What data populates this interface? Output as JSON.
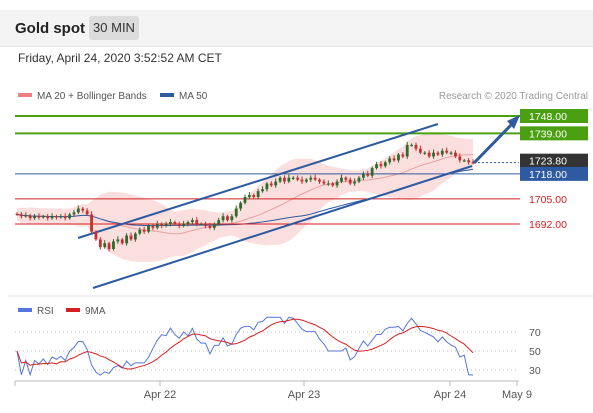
{
  "header": {
    "title": "Gold spot",
    "interval": "30 MIN"
  },
  "datetime": "Friday, April 24, 2020 3:52:52 AM CET",
  "legend": {
    "bb": "MA 20 + Bollinger Bands",
    "ma50": "MA 50",
    "credit": "Research © 2020 Trading Central"
  },
  "rsi_legend": {
    "rsi": "RSI",
    "ma9": "9MA"
  },
  "colors": {
    "green": "#4aa010",
    "blue": "#2d5aa0",
    "red": "#d42020",
    "current": "#333333",
    "bands": "#f7c8c8",
    "rsi": "#5577dd"
  },
  "chart_data": {
    "type": "candlestick",
    "x_ticks": [
      "Apr 22",
      "Apr 23",
      "Apr 24",
      "May 9"
    ],
    "y_ticks": [
      1692,
      1705,
      1718,
      1723.8,
      1739,
      1748
    ],
    "levels": [
      {
        "value": 1748.0,
        "label": "1748.00",
        "color": "#4aa010",
        "kind": "resistance"
      },
      {
        "value": 1739.0,
        "label": "1739.00",
        "color": "#4aa010",
        "kind": "resistance"
      },
      {
        "value": 1723.8,
        "label": "1723.80",
        "color": "#333333",
        "kind": "current"
      },
      {
        "value": 1718.0,
        "label": "1718.00",
        "color": "#2d5aa0",
        "kind": "pivot"
      },
      {
        "value": 1705.0,
        "label": "1705.00",
        "color": "#d42020",
        "kind": "support"
      },
      {
        "value": 1692.0,
        "label": "1692.00",
        "color": "#d42020",
        "kind": "support"
      }
    ],
    "closes": [
      1697,
      1696,
      1696.5,
      1695,
      1696,
      1695.5,
      1696,
      1695,
      1696,
      1695.5,
      1696,
      1695,
      1697,
      1698,
      1700,
      1699,
      1697,
      1688,
      1684,
      1680,
      1682,
      1679,
      1683,
      1684,
      1682,
      1686,
      1684,
      1687,
      1689,
      1688,
      1691,
      1690,
      1692,
      1691,
      1692,
      1693,
      1692,
      1691,
      1692,
      1693,
      1694,
      1692,
      1692,
      1691,
      1690,
      1692,
      1694,
      1696,
      1694,
      1696,
      1700,
      1703,
      1706,
      1707,
      1706,
      1709,
      1710,
      1713,
      1712,
      1714,
      1716,
      1714,
      1716,
      1716,
      1715,
      1714,
      1715,
      1716,
      1715,
      1714,
      1713,
      1713,
      1712,
      1714,
      1716,
      1715,
      1713,
      1714,
      1716,
      1718,
      1717,
      1721,
      1723,
      1722,
      1724,
      1726,
      1725,
      1728,
      1727,
      1733,
      1733,
      1731,
      1729,
      1729,
      1727,
      1729,
      1728,
      1730,
      1729,
      1729,
      1727,
      1725,
      1725,
      1724,
      1723.8
    ],
    "rsi": {
      "ticks": [
        70,
        50,
        30
      ]
    }
  }
}
